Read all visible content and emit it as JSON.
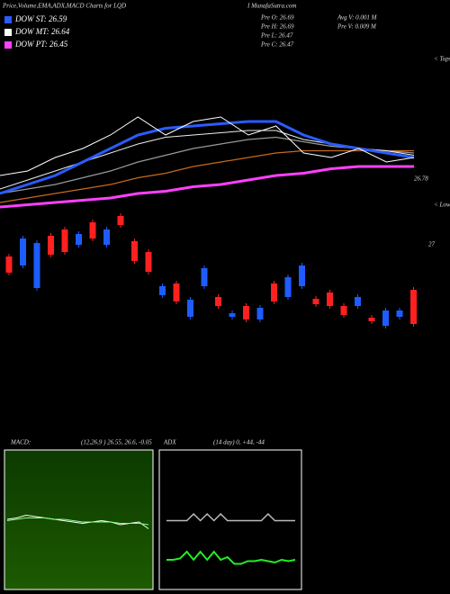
{
  "header": {
    "title": "Price,Volume,EMA,ADX,MACD Charts for LQD",
    "site": "I MunafaSutra.com",
    "legend": [
      {
        "label": "DOW ST: 26.59",
        "color": "#2a5cff"
      },
      {
        "label": "DOW MT: 26.64",
        "color": "#ffffff"
      },
      {
        "label": "DOW PT: 26.45",
        "color": "#ff40ff"
      }
    ],
    "stats": [
      "Pre O: 26.69",
      "Pre H: 26.69",
      "Pre L: 26.47",
      "Pre C: 26.47"
    ],
    "volume": [
      "Avg V: 0.001 M",
      "Pre V: 0.009 M"
    ],
    "tops_label": "< Tops",
    "lows_label": "< Lows"
  },
  "chart_data": [
    {
      "type": "line",
      "ylim": [
        26.6,
        27.3
      ],
      "yticks": [
        26.78
      ],
      "series": [
        {
          "color": "#ff40ff",
          "width": 3,
          "values": [
            26.62,
            26.63,
            26.64,
            26.65,
            26.66,
            26.68,
            26.69,
            26.71,
            26.72,
            26.74,
            26.76,
            26.77,
            26.79,
            26.8,
            26.8,
            26.8
          ]
        },
        {
          "color": "#c86a1a",
          "width": 1.2,
          "values": [
            26.64,
            26.66,
            26.68,
            26.7,
            26.72,
            26.75,
            26.77,
            26.8,
            26.82,
            26.84,
            26.86,
            26.87,
            26.87,
            26.87,
            26.87,
            26.87
          ]
        },
        {
          "color": "#999999",
          "width": 1.2,
          "values": [
            26.68,
            26.7,
            26.72,
            26.75,
            26.78,
            26.82,
            26.85,
            26.88,
            26.9,
            26.92,
            26.93,
            26.91,
            26.89,
            26.88,
            26.87,
            26.86
          ]
        },
        {
          "color": "#eeeeee",
          "width": 1,
          "values": [
            26.7,
            26.74,
            26.78,
            26.82,
            26.86,
            26.9,
            26.93,
            26.94,
            26.95,
            26.96,
            26.96,
            26.92,
            26.9,
            26.88,
            26.87,
            26.85
          ]
        },
        {
          "color": "#2a5cff",
          "width": 3,
          "values": [
            26.68,
            26.72,
            26.76,
            26.82,
            26.88,
            26.94,
            26.97,
            26.98,
            26.99,
            27.0,
            27.0,
            26.94,
            26.9,
            26.88,
            26.86,
            26.84
          ]
        },
        {
          "color": "#ffffff",
          "width": 1,
          "values": [
            26.76,
            26.78,
            26.84,
            26.88,
            26.94,
            27.02,
            26.94,
            27.0,
            27.02,
            26.94,
            26.98,
            26.86,
            26.84,
            26.88,
            26.82,
            26.84
          ]
        }
      ]
    },
    {
      "type": "candlestick",
      "ylim": [
        26.0,
        27.4
      ],
      "yticks": [
        27
      ],
      "up_color": "#1e5cff",
      "down_color": "#ff2020",
      "open": [
        26.87,
        26.77,
        26.52,
        27.1,
        27.17,
        27.0,
        27.25,
        27.0,
        27.32,
        27.04,
        26.92,
        26.44,
        26.57,
        26.2,
        26.54,
        26.42,
        26.2,
        26.32,
        26.17,
        26.57,
        26.42,
        26.54,
        26.4,
        26.47,
        26.32,
        26.32,
        26.19,
        26.1,
        26.2,
        26.5
      ],
      "high": [
        26.9,
        27.1,
        27.05,
        27.13,
        27.2,
        27.15,
        27.28,
        27.2,
        27.35,
        27.07,
        26.95,
        26.57,
        26.6,
        26.42,
        26.77,
        26.45,
        26.27,
        26.35,
        26.33,
        26.6,
        26.67,
        26.8,
        26.43,
        26.5,
        26.35,
        26.45,
        26.22,
        26.3,
        26.3,
        26.53
      ],
      "low": [
        26.66,
        26.74,
        26.49,
        26.86,
        26.89,
        26.97,
        27.04,
        26.97,
        27.19,
        26.79,
        26.67,
        26.41,
        26.34,
        26.17,
        26.51,
        26.29,
        26.17,
        26.14,
        26.14,
        26.34,
        26.39,
        26.51,
        26.31,
        26.29,
        26.19,
        26.29,
        26.12,
        26.07,
        26.17,
        26.09
      ],
      "close": [
        26.69,
        27.07,
        27.02,
        26.89,
        26.92,
        27.12,
        27.07,
        27.17,
        27.22,
        26.82,
        26.7,
        26.54,
        26.37,
        26.39,
        26.74,
        26.32,
        26.24,
        26.17,
        26.3,
        26.37,
        26.64,
        26.77,
        26.34,
        26.32,
        26.22,
        26.42,
        26.15,
        26.27,
        26.27,
        26.12
      ]
    },
    {
      "type": "macd",
      "label": "MACD:",
      "params": "(12,26,9 ) 26.55, 26.6, -0.05",
      "ylim": [
        -0.5,
        0.5
      ],
      "series": [
        {
          "color": "#ffffff",
          "values": [
            0.02,
            0.03,
            0.05,
            0.04,
            0.03,
            0.02,
            0.01,
            0.0,
            -0.01,
            0.0,
            0.01,
            0.0,
            -0.02,
            -0.01,
            0.0,
            -0.05
          ]
        },
        {
          "color": "#88ff88",
          "values": [
            0.01,
            0.02,
            0.03,
            0.03,
            0.03,
            0.02,
            0.02,
            0.01,
            0.0,
            0.0,
            0.0,
            0.0,
            -0.01,
            -0.01,
            -0.01,
            -0.02
          ]
        }
      ]
    },
    {
      "type": "adx",
      "label": "ADX",
      "params": "(14 day) 0, +44, -44",
      "ylim": [
        0,
        100
      ],
      "series": [
        {
          "color": "#bbbbbb",
          "values": [
            51,
            51,
            51,
            51,
            56,
            51,
            56,
            51,
            56,
            51,
            51,
            51,
            51,
            51,
            51,
            56,
            51,
            51,
            51,
            51
          ]
        },
        {
          "color": "#22ee22",
          "values": [
            22,
            22,
            23,
            28,
            22,
            28,
            22,
            28,
            22,
            24,
            19,
            19,
            21,
            21,
            22,
            21,
            20,
            22,
            21,
            22
          ]
        }
      ]
    }
  ]
}
